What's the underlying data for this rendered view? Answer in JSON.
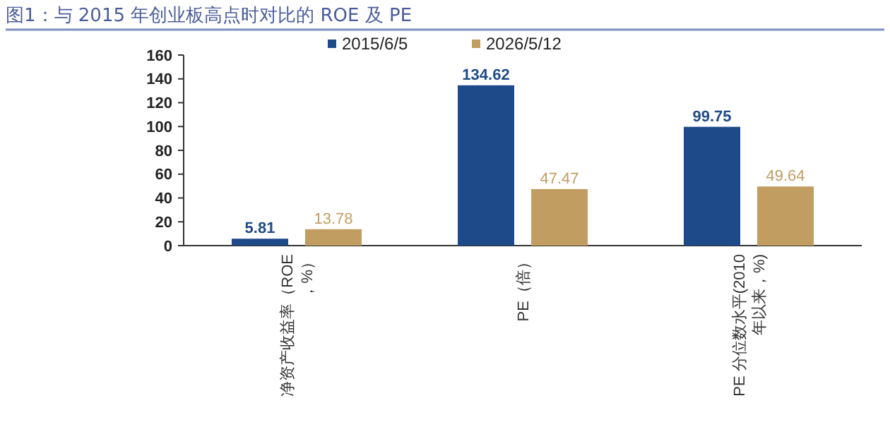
{
  "chart_data": {
    "type": "bar",
    "title": "图1：与 2015 年创业板高点时对比的 ROE 及 PE",
    "categories": [
      "净资产收益率（ROE，%）",
      "PE（倍）",
      "PE 分位数水平(2010年以来，%)"
    ],
    "series": [
      {
        "name": "2015/6/5",
        "color": "#1f4a8a",
        "values": [
          5.81,
          134.62,
          99.75
        ]
      },
      {
        "name": "2026/5/12",
        "color": "#c29d62",
        "values": [
          13.78,
          47.47,
          49.64
        ]
      }
    ],
    "ylim": [
      0,
      160
    ],
    "yticks": [
      0,
      20,
      40,
      60,
      80,
      100,
      120,
      140,
      160
    ],
    "data_labels": true,
    "legend": "top",
    "grid": false
  }
}
